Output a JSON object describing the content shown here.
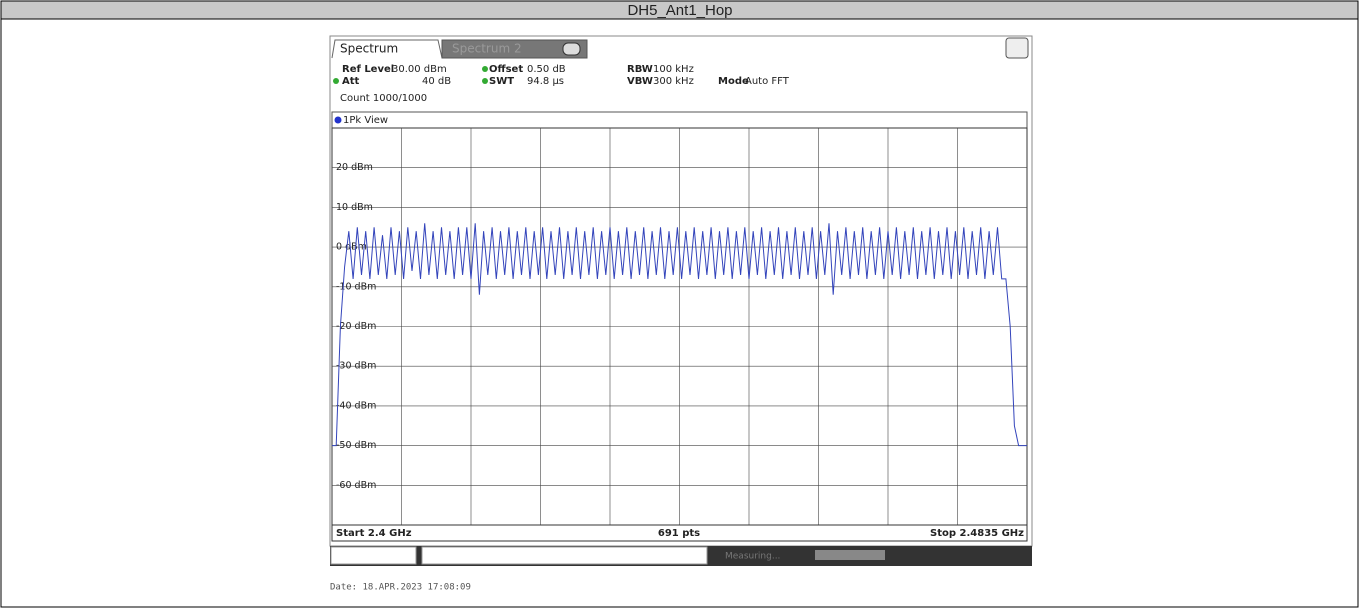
{
  "title": "DH5_Ant1_Hop",
  "tabs": [
    "Spectrum",
    "Spectrum 2"
  ],
  "settings": [
    {
      "label": "Ref Level",
      "value": "30.00 dBm"
    },
    {
      "label": "Offset",
      "value": "0.50 dB"
    },
    {
      "label": "RBW",
      "value": "100 kHz"
    },
    {
      "label": "Att",
      "value": "40 dB"
    },
    {
      "label": "SWT",
      "value": "94.8 µs"
    },
    {
      "label": "VBW",
      "value": "300 kHz"
    },
    {
      "label": "Mode",
      "value": "Auto FFT"
    }
  ],
  "count": "Count 1000/1000",
  "trace_name": "1Pk View",
  "plot": {
    "ylim": [
      -70,
      30
    ],
    "yticks": [
      {
        "value": 20,
        "label": "20 dBm"
      },
      {
        "value": 10,
        "label": "10 dBm"
      },
      {
        "value": 0,
        "label": "0 dBm"
      },
      {
        "value": -10,
        "label": "-10 dBm"
      },
      {
        "value": -20,
        "label": "-20 dBm"
      },
      {
        "value": -30,
        "label": "-30 dBm"
      },
      {
        "value": -40,
        "label": "-40 dBm"
      },
      {
        "value": -50,
        "label": "-50 dBm"
      },
      {
        "value": -60,
        "label": "-60 dBm"
      }
    ],
    "color": "#3344bb",
    "trace": [
      -50,
      -50,
      -20,
      -5,
      4,
      -8,
      5,
      -7,
      4,
      -8,
      5,
      -7,
      3,
      -8,
      5,
      -7,
      4,
      -8,
      5,
      -6,
      4,
      -8,
      6,
      -7,
      4,
      -8,
      5,
      -7,
      4,
      -8,
      5,
      -7,
      5,
      -8,
      6,
      -12,
      4,
      -7,
      5,
      -8,
      4,
      -7,
      5,
      -8,
      4,
      -7,
      5,
      -8,
      4,
      -7,
      5,
      -8,
      4,
      -7,
      5,
      -8,
      4,
      -7,
      5,
      -8,
      4,
      -7,
      5,
      -8,
      4,
      -7,
      5,
      -8,
      4,
      -7,
      5,
      -8,
      4,
      -7,
      5,
      -8,
      4,
      -7,
      5,
      -8,
      4,
      -7,
      5,
      -8,
      4,
      -7,
      5,
      -8,
      4,
      -7,
      5,
      -8,
      4,
      -7,
      5,
      -8,
      4,
      -7,
      5,
      -8,
      4,
      -7,
      5,
      -8,
      4,
      -7,
      5,
      -8,
      4,
      -7,
      5,
      -8,
      4,
      -7,
      5,
      -8,
      4,
      -7,
      6,
      -12,
      4,
      -7,
      5,
      -8,
      4,
      -7,
      5,
      -8,
      4,
      -7,
      5,
      -8,
      4,
      -7,
      5,
      -8,
      4,
      -7,
      5,
      -8,
      4,
      -7,
      5,
      -8,
      4,
      -7,
      5,
      -8,
      4,
      -7,
      5,
      -8,
      4,
      -7,
      5,
      -8,
      4,
      -7,
      5,
      -8,
      -8,
      -20,
      -45,
      -50,
      -50,
      -50
    ],
    "start": "Start 2.4 GHz",
    "points": "691 pts",
    "stop": "Stop 2.4835 GHz"
  },
  "status": "Measuring...",
  "date": "Date: 18.APR.2023  17:08:09"
}
